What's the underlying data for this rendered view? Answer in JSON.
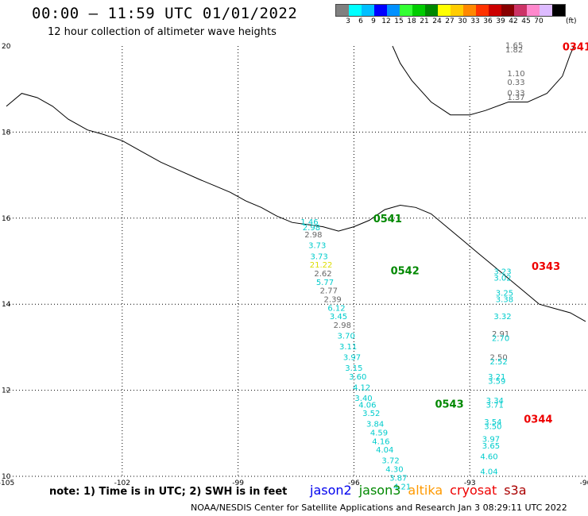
{
  "title": "00:00 – 11:59 UTC 01/01/2022",
  "subtitle": "12 hour collection of altimeter wave heights",
  "colorbar": {
    "colors": [
      "#808080",
      "#00ffff",
      "#00bfff",
      "#0000ff",
      "#0090ff",
      "#33ff33",
      "#00cc00",
      "#008800",
      "#ffff00",
      "#ffcc00",
      "#ff8800",
      "#ff3300",
      "#cc0000",
      "#880000",
      "#cc3366",
      "#ff88cc",
      "#ddbbff",
      "#000000"
    ],
    "labels": [
      "3",
      "6",
      "9",
      "12",
      "15",
      "18",
      "21",
      "24",
      "27",
      "30",
      "33",
      "36",
      "39",
      "42",
      "45",
      "70"
    ],
    "unit": "(ft)"
  },
  "axes": {
    "lon_ticks": [
      "-105",
      "-102",
      "-99",
      "-96",
      "-93",
      "-90"
    ],
    "lat_ticks": [
      "20",
      "18",
      "16",
      "14",
      "12",
      "10"
    ]
  },
  "map_data": {
    "lon_range": [
      -105,
      -90
    ],
    "lat_range": [
      10,
      20
    ],
    "coastline": [
      [
        -105,
        18.6
      ],
      [
        -104.6,
        18.9
      ],
      [
        -104.2,
        18.8
      ],
      [
        -103.8,
        18.6
      ],
      [
        -103.4,
        18.3
      ],
      [
        -102.9,
        18.05
      ],
      [
        -102.5,
        17.95
      ],
      [
        -102.0,
        17.8
      ],
      [
        -101.5,
        17.55
      ],
      [
        -101.0,
        17.3
      ],
      [
        -100.5,
        17.1
      ],
      [
        -100.0,
        16.9
      ],
      [
        -99.6,
        16.75
      ],
      [
        -99.2,
        16.6
      ],
      [
        -98.8,
        16.4
      ],
      [
        -98.4,
        16.25
      ],
      [
        -98.0,
        16.05
      ],
      [
        -97.6,
        15.9
      ],
      [
        -97.2,
        15.85
      ],
      [
        -96.8,
        15.8
      ],
      [
        -96.4,
        15.7
      ],
      [
        -96.0,
        15.8
      ],
      [
        -95.6,
        15.95
      ],
      [
        -95.2,
        16.2
      ],
      [
        -94.8,
        16.3
      ],
      [
        -94.4,
        16.25
      ],
      [
        -94.0,
        16.1
      ],
      [
        -93.6,
        15.8
      ],
      [
        -93.2,
        15.5
      ],
      [
        -92.8,
        15.2
      ],
      [
        -92.4,
        14.9
      ],
      [
        -92.0,
        14.6
      ],
      [
        -91.6,
        14.3
      ],
      [
        -91.2,
        14.0
      ],
      [
        -90.8,
        13.9
      ],
      [
        -90.4,
        13.8
      ],
      [
        -90.0,
        13.6
      ]
    ],
    "yucatan_coast": [
      [
        -95.0,
        20.0
      ],
      [
        -94.8,
        19.6
      ],
      [
        -94.5,
        19.2
      ],
      [
        -94.0,
        18.7
      ],
      [
        -93.5,
        18.4
      ],
      [
        -93.0,
        18.4
      ],
      [
        -92.6,
        18.5
      ],
      [
        -92.0,
        18.7
      ],
      [
        -91.5,
        18.7
      ],
      [
        -91.0,
        18.9
      ],
      [
        -90.6,
        19.3
      ],
      [
        -90.4,
        19.8
      ],
      [
        -90.3,
        20.0
      ]
    ],
    "passes": [
      {
        "id": "0541",
        "sat": "jason3",
        "label_lon": -95.5,
        "label_lat": 15.9
      },
      {
        "id": "0542",
        "sat": "jason3",
        "label_lon": -95.05,
        "label_lat": 14.7
      },
      {
        "id": "0543",
        "sat": "jason3",
        "label_lon": -93.9,
        "label_lat": 11.6
      },
      {
        "id": "0341",
        "sat": "cryosat",
        "label_lon": -90.6,
        "label_lat": 19.9
      },
      {
        "id": "0343",
        "sat": "cryosat",
        "label_lon": -91.4,
        "label_lat": 14.8
      },
      {
        "id": "0344",
        "sat": "cryosat",
        "label_lon": -91.6,
        "label_lat": 11.25
      }
    ],
    "observations": [
      {
        "lon": -97.15,
        "lat": 15.85,
        "value": "1.46",
        "color": "#00cccc"
      },
      {
        "lon": -97.1,
        "lat": 15.72,
        "value": "2.98",
        "color": "#00cccc"
      },
      {
        "lon": -97.05,
        "lat": 15.55,
        "value": "2.98",
        "color": "#666666"
      },
      {
        "lon": -96.95,
        "lat": 15.3,
        "value": "3.73",
        "color": "#00cccc"
      },
      {
        "lon": -96.9,
        "lat": 15.05,
        "value": "3.73",
        "color": "#00cccc"
      },
      {
        "lon": -96.85,
        "lat": 14.85,
        "value": "21.22",
        "color": "#dddd00"
      },
      {
        "lon": -96.8,
        "lat": 14.65,
        "value": "2.62",
        "color": "#666666"
      },
      {
        "lon": -96.75,
        "lat": 14.45,
        "value": "5.77",
        "color": "#00cccc"
      },
      {
        "lon": -96.65,
        "lat": 14.25,
        "value": "2.77",
        "color": "#666666"
      },
      {
        "lon": -96.55,
        "lat": 14.05,
        "value": "2.39",
        "color": "#666666"
      },
      {
        "lon": -96.45,
        "lat": 13.85,
        "value": "6.12",
        "color": "#00cccc"
      },
      {
        "lon": -96.4,
        "lat": 13.65,
        "value": "3.45",
        "color": "#00cccc"
      },
      {
        "lon": -96.3,
        "lat": 13.45,
        "value": "2.98",
        "color": "#666666"
      },
      {
        "lon": -96.2,
        "lat": 13.2,
        "value": "3.70",
        "color": "#00cccc"
      },
      {
        "lon": -96.15,
        "lat": 12.95,
        "value": "3.11",
        "color": "#00cccc"
      },
      {
        "lon": -96.05,
        "lat": 12.7,
        "value": "3.97",
        "color": "#00cccc"
      },
      {
        "lon": -96.0,
        "lat": 12.45,
        "value": "3.15",
        "color": "#00cccc"
      },
      {
        "lon": -95.9,
        "lat": 12.25,
        "value": "3.60",
        "color": "#00cccc"
      },
      {
        "lon": -95.8,
        "lat": 12.0,
        "value": "4.12",
        "color": "#00cccc"
      },
      {
        "lon": -95.75,
        "lat": 11.75,
        "value": "3.40",
        "color": "#00cccc"
      },
      {
        "lon": -95.65,
        "lat": 11.6,
        "value": "4.06",
        "color": "#00cccc"
      },
      {
        "lon": -95.55,
        "lat": 11.4,
        "value": "3.52",
        "color": "#00cccc"
      },
      {
        "lon": -95.45,
        "lat": 11.15,
        "value": "3.84",
        "color": "#00cccc"
      },
      {
        "lon": -95.35,
        "lat": 10.95,
        "value": "4.59",
        "color": "#00cccc"
      },
      {
        "lon": -95.3,
        "lat": 10.75,
        "value": "4.16",
        "color": "#00cccc"
      },
      {
        "lon": -95.2,
        "lat": 10.55,
        "value": "4.04",
        "color": "#00cccc"
      },
      {
        "lon": -95.05,
        "lat": 10.3,
        "value": "3.72",
        "color": "#00cccc"
      },
      {
        "lon": -94.95,
        "lat": 10.1,
        "value": "4.30",
        "color": "#00cccc"
      },
      {
        "lon": -94.85,
        "lat": 9.9,
        "value": "3.87",
        "color": "#00cccc"
      },
      {
        "lon": -94.75,
        "lat": 9.7,
        "value": "4.21",
        "color": "#00cccc"
      },
      {
        "lon": -91.85,
        "lat": 19.95,
        "value": "1.65",
        "color": "#666666"
      },
      {
        "lon": -91.85,
        "lat": 19.85,
        "value": "1.82",
        "color": "#666666"
      },
      {
        "lon": -91.8,
        "lat": 19.3,
        "value": "1.10",
        "color": "#666666"
      },
      {
        "lon": -91.8,
        "lat": 19.1,
        "value": "0.33",
        "color": "#666666"
      },
      {
        "lon": -91.8,
        "lat": 18.85,
        "value": "0.33",
        "color": "#666666"
      },
      {
        "lon": -91.8,
        "lat": 18.75,
        "value": "1.37",
        "color": "#666666"
      },
      {
        "lon": -92.15,
        "lat": 14.7,
        "value": "3.23",
        "color": "#00cccc"
      },
      {
        "lon": -92.15,
        "lat": 14.55,
        "value": "3.02",
        "color": "#00cccc"
      },
      {
        "lon": -92.1,
        "lat": 14.2,
        "value": "3.25",
        "color": "#00cccc"
      },
      {
        "lon": -92.1,
        "lat": 14.05,
        "value": "3.38",
        "color": "#00cccc"
      },
      {
        "lon": -92.15,
        "lat": 13.65,
        "value": "3.32",
        "color": "#00cccc"
      },
      {
        "lon": -92.2,
        "lat": 13.25,
        "value": "2.91",
        "color": "#666666"
      },
      {
        "lon": -92.2,
        "lat": 13.15,
        "value": "2.70",
        "color": "#00cccc"
      },
      {
        "lon": -92.25,
        "lat": 12.7,
        "value": "2.50",
        "color": "#666666"
      },
      {
        "lon": -92.25,
        "lat": 12.6,
        "value": "2.52",
        "color": "#00cccc"
      },
      {
        "lon": -92.3,
        "lat": 12.25,
        "value": "3.21",
        "color": "#00cccc"
      },
      {
        "lon": -92.3,
        "lat": 12.15,
        "value": "3.59",
        "color": "#00cccc"
      },
      {
        "lon": -92.35,
        "lat": 11.7,
        "value": "3.34",
        "color": "#00cccc"
      },
      {
        "lon": -92.35,
        "lat": 11.6,
        "value": "3.71",
        "color": "#00cccc"
      },
      {
        "lon": -92.4,
        "lat": 11.2,
        "value": "3.54",
        "color": "#00cccc"
      },
      {
        "lon": -92.4,
        "lat": 11.1,
        "value": "3.50",
        "color": "#00cccc"
      },
      {
        "lon": -92.45,
        "lat": 10.8,
        "value": "3.97",
        "color": "#00cccc"
      },
      {
        "lon": -92.45,
        "lat": 10.65,
        "value": "3.65",
        "color": "#00cccc"
      },
      {
        "lon": -92.5,
        "lat": 10.4,
        "value": "4.60",
        "color": "#00cccc"
      },
      {
        "lon": -92.5,
        "lat": 10.05,
        "value": "4.04",
        "color": "#00cccc"
      }
    ]
  },
  "note": "note: 1) Time is in UTC; 2) SWH is in feet",
  "legend": [
    {
      "name": "jason2",
      "color": "#0000ee"
    },
    {
      "name": "jason3",
      "color": "#008800"
    },
    {
      "name": "altika",
      "color": "#ff9900"
    },
    {
      "name": "cryosat",
      "color": "#ee0000"
    },
    {
      "name": "s3a",
      "color": "#aa0000"
    }
  ],
  "footer": "NOAA/NESDIS Center for Satellite Applications and Research    Jan  3 08:29:11 UTC 2022"
}
